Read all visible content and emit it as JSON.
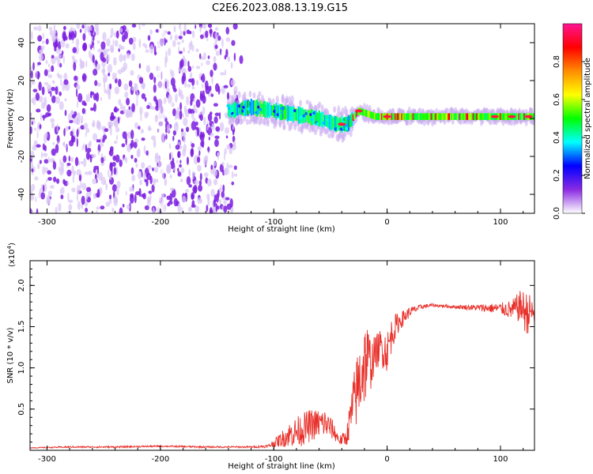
{
  "title": "C2E6.2023.088.13.19.G15",
  "chart_data": [
    {
      "type": "heatmap",
      "xlabel": "Height of straight line (km)",
      "ylabel": "Frequency (Hz)",
      "xlim": [
        -315,
        130
      ],
      "ylim": [
        -50,
        50
      ],
      "x_ticks": [
        -300,
        -200,
        -100,
        0,
        100
      ],
      "y_ticks": [
        -40,
        -20,
        0,
        20,
        40
      ],
      "colorbar": {
        "label": "Normalized spectral amplitude",
        "range": [
          0.0,
          1.0
        ],
        "ticks": [
          0.0,
          0.2,
          0.4,
          0.6,
          0.8
        ],
        "colors": [
          "#ffffff",
          "#8a2be2",
          "#0000ff",
          "#00ffff",
          "#00ff00",
          "#ffff00",
          "#ff8c00",
          "#ff0000",
          "#ff1493"
        ]
      },
      "regions": [
        {
          "x": [
            -315,
            -125
          ],
          "f": [
            -50,
            50
          ],
          "amplitude": 0.2,
          "note": ""
        },
        {
          "x": [
            -140,
            -30
          ],
          "f": [
            -12,
            8
          ],
          "amplitude": 0.45,
          "note": ""
        },
        {
          "x": [
            -30,
            130
          ],
          "f": [
            -2,
            5
          ],
          "amplitude": 0.55,
          "note": ""
        }
      ],
      "ridge": {
        "x": [
          -140,
          -120,
          -100,
          -80,
          -60,
          -45,
          -35,
          -25,
          -20,
          -10,
          0,
          20,
          40,
          60,
          80,
          100,
          120,
          130
        ],
        "freq": [
          4,
          6,
          4,
          2,
          0,
          -3,
          -3,
          4,
          3,
          1,
          1,
          1,
          1,
          1,
          1,
          1,
          1,
          1
        ]
      }
    },
    {
      "type": "line",
      "xlabel": "Height of straight line (km)",
      "ylabel": "SNR (10 * v/v)",
      "y_multiplier": "(x10",
      "y_multiplier_exp": "4",
      "xlim": [
        -315,
        130
      ],
      "ylim": [
        0,
        2.3
      ],
      "x_ticks": [
        -300,
        -200,
        -100,
        0,
        100
      ],
      "y_ticks": [
        0.5,
        1.0,
        1.5,
        2.0
      ],
      "y_tick_labels": [
        "0.5",
        "1.0",
        "1.5",
        "2.0"
      ],
      "series": [
        {
          "color": "#e8302a",
          "x": [
            -315,
            -280,
            -240,
            -200,
            -160,
            -120,
            -105,
            -95,
            -85,
            -75,
            -68,
            -62,
            -55,
            -48,
            -42,
            -36,
            -30,
            -25,
            -22,
            -18,
            -14,
            -10,
            -5,
            0,
            5,
            10,
            20,
            30,
            40,
            50,
            60,
            80,
            100,
            110,
            118,
            123,
            127,
            130
          ],
          "y": [
            0.03,
            0.04,
            0.04,
            0.05,
            0.04,
            0.04,
            0.05,
            0.12,
            0.2,
            0.25,
            0.3,
            0.32,
            0.33,
            0.25,
            0.12,
            0.15,
            0.55,
            0.8,
            1.0,
            1.1,
            1.05,
            1.2,
            1.25,
            1.2,
            1.45,
            1.55,
            1.68,
            1.74,
            1.76,
            1.75,
            1.74,
            1.73,
            1.72,
            1.7,
            1.75,
            1.65,
            1.7,
            1.6
          ],
          "noise": [
            0.005,
            0.01,
            0.01,
            0.01,
            0.01,
            0.01,
            0.02,
            0.08,
            0.16,
            0.2,
            0.2,
            0.18,
            0.18,
            0.12,
            0.06,
            0.1,
            0.35,
            0.5,
            0.55,
            0.5,
            0.3,
            0.2,
            0.25,
            0.25,
            0.2,
            0.12,
            0.06,
            0.03,
            0.02,
            0.02,
            0.02,
            0.04,
            0.07,
            0.12,
            0.2,
            0.28,
            0.18,
            0.12
          ]
        }
      ]
    }
  ]
}
